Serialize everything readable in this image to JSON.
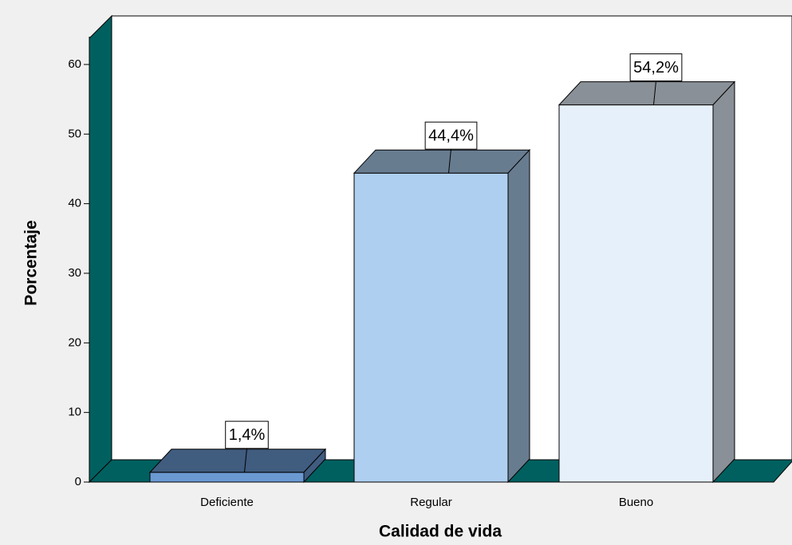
{
  "chart_data": {
    "type": "bar3d",
    "x_label": "Calidad de vida",
    "y_label": "Porcentaje",
    "categories": [
      "Deficiente",
      "Regular",
      "Bueno"
    ],
    "values": [
      1.4,
      44.4,
      54.2
    ],
    "value_labels": [
      "1,4%",
      "44,4%",
      "54,2%"
    ],
    "colors": [
      "#6b9ad3",
      "#aecff0",
      "#e6f0fb"
    ],
    "ylim": [
      0,
      64
    ],
    "yticks": [
      0,
      10,
      20,
      30,
      40,
      50,
      60
    ]
  }
}
